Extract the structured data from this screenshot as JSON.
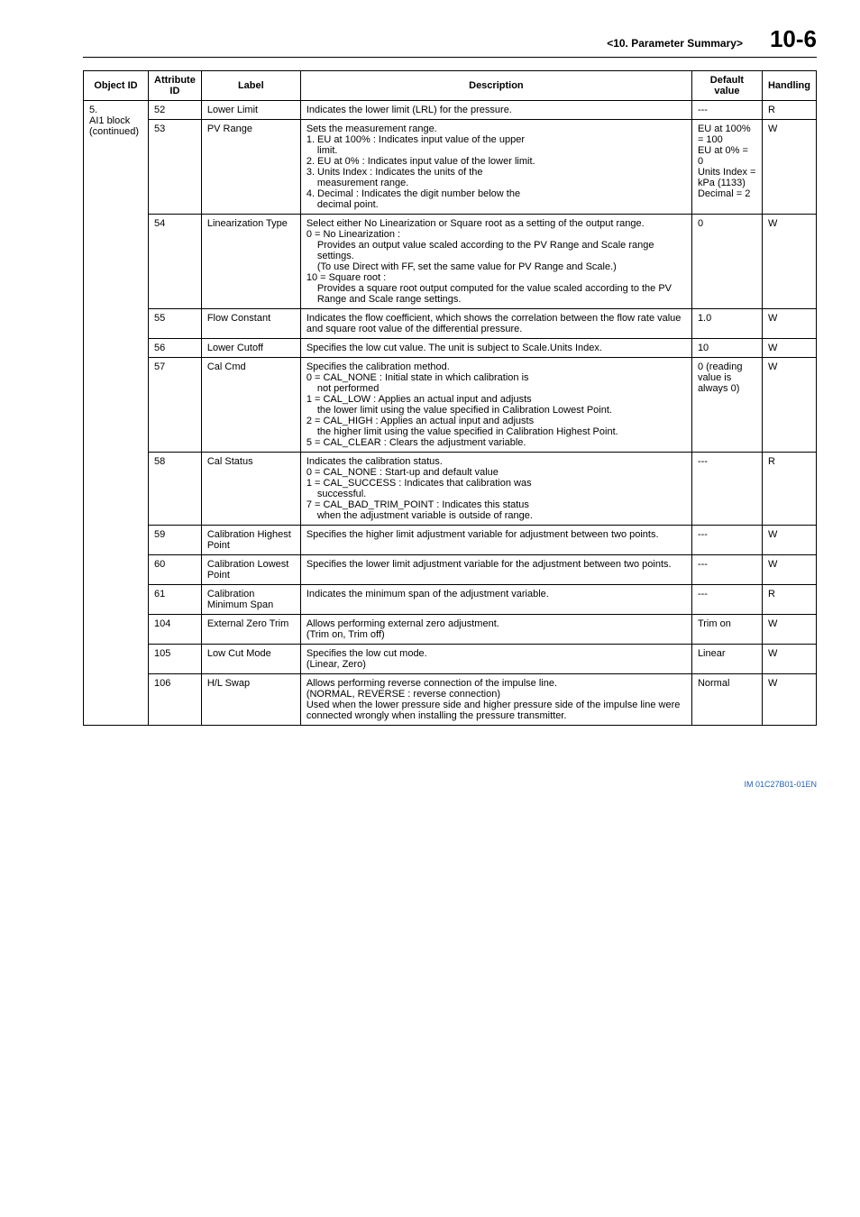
{
  "header": {
    "section": "<10.  Parameter Summary>",
    "page": "10-6"
  },
  "table": {
    "headers": {
      "object_id": "Object ID",
      "attribute_id": "Attribute ID",
      "label": "Label",
      "description": "Description",
      "default_value": "Default value",
      "handling": "Handling"
    },
    "object_group": "5.\nAI1 block (continued)",
    "rows": [
      {
        "attr": "52",
        "label": "Lower Limit",
        "desc": [
          "Indicates the lower limit (LRL) for the pressure."
        ],
        "default": "---",
        "handling": "R"
      },
      {
        "attr": "53",
        "label": "PV Range",
        "desc": [
          "Sets the measurement range.",
          "1. EU at 100% : Indicates input value of the upper",
          {
            "indent": 1,
            "text": "limit."
          },
          "2. EU at 0% : Indicates input value of the lower limit.",
          "3. Units Index : Indicates the units of the",
          {
            "indent": 1,
            "text": "measurement range."
          },
          "4. Decimal : Indicates the digit number below the",
          {
            "indent": 1,
            "text": "decimal point."
          }
        ],
        "default": "EU at 100% = 100\nEU at 0% = 0\nUnits Index = kPa (1133)\nDecimal = 2",
        "handling": "W"
      },
      {
        "attr": "54",
        "label": "Linearization Type",
        "desc": [
          "Select either No Linearization or Square root as a setting of the output range.",
          "0 = No Linearization :",
          {
            "indent": 1,
            "text": "Provides an output value scaled according to the PV Range and Scale range settings."
          },
          {
            "indent": 1,
            "text": "(To use Direct with FF, set the same value for PV Range and Scale.)"
          },
          "10 = Square root :",
          {
            "indent": 1,
            "text": "Provides a square root output computed for the value scaled according to the PV Range and Scale range settings."
          }
        ],
        "default": "0",
        "handling": "W"
      },
      {
        "attr": "55",
        "label": "Flow Constant",
        "desc": [
          "Indicates the flow coefficient, which shows the correlation between the flow rate value and square root value of the differential pressure."
        ],
        "default": "1.0",
        "handling": "W"
      },
      {
        "attr": "56",
        "label": "Lower Cutoff",
        "desc": [
          "Specifies the low cut value. The unit is subject to Scale.Units Index."
        ],
        "default": "10",
        "handling": "W"
      },
      {
        "attr": "57",
        "label": "Cal Cmd",
        "desc": [
          "Specifies the calibration method.",
          "0 = CAL_NONE : Initial state in which calibration is",
          {
            "indent": 1,
            "text": "not performed"
          },
          "1 = CAL_LOW : Applies an actual input and adjusts",
          {
            "indent": 1,
            "text": "the lower limit using the value specified in Calibration Lowest Point."
          },
          "2 = CAL_HIGH : Applies an actual input and adjusts",
          {
            "indent": 1,
            "text": "the higher limit using the value specified in Calibration Highest Point."
          },
          "5 = CAL_CLEAR : Clears the adjustment variable."
        ],
        "default": "0 (reading value is always 0)",
        "handling": "W"
      },
      {
        "attr": "58",
        "label": "Cal Status",
        "desc": [
          "Indicates the calibration status.",
          "0 = CAL_NONE : Start-up and default value",
          "1 = CAL_SUCCESS : Indicates that calibration was",
          {
            "indent": 1,
            "text": "successful."
          },
          "7 = CAL_BAD_TRIM_POINT : Indicates this status",
          {
            "indent": 1,
            "text": "when the adjustment variable is outside of range."
          }
        ],
        "default": "---",
        "handling": "R"
      },
      {
        "attr": "59",
        "label": "Calibration Highest Point",
        "desc": [
          "Specifies the higher limit adjustment variable for adjustment between two points."
        ],
        "default": "---",
        "handling": "W"
      },
      {
        "attr": "60",
        "label": "Calibration Lowest Point",
        "desc": [
          "Specifies the lower limit adjustment variable for the adjustment between two points."
        ],
        "default": "---",
        "handling": "W"
      },
      {
        "attr": "61",
        "label": "Calibration Minimum Span",
        "desc": [
          "Indicates the minimum span of the adjustment variable."
        ],
        "default": "---",
        "handling": "R"
      },
      {
        "attr": "104",
        "label": "External Zero Trim",
        "desc": [
          "Allows performing external zero adjustment.",
          "(Trim on, Trim off)"
        ],
        "default": "Trim on",
        "handling": "W"
      },
      {
        "attr": "105",
        "label": "Low Cut Mode",
        "desc": [
          "Specifies the low cut mode.",
          "(Linear, Zero)"
        ],
        "default": "Linear",
        "handling": "W"
      },
      {
        "attr": "106",
        "label": "H/L Swap",
        "desc": [
          "Allows performing reverse connection of the impulse line.",
          "(NORMAL, REVERSE : reverse connection)",
          "Used when the lower pressure side and higher pressure side of the impulse line were connected wrongly when installing the pressure transmitter."
        ],
        "default": "Normal",
        "handling": "W"
      }
    ]
  },
  "footer": {
    "docid": "IM 01C27B01-01EN"
  }
}
